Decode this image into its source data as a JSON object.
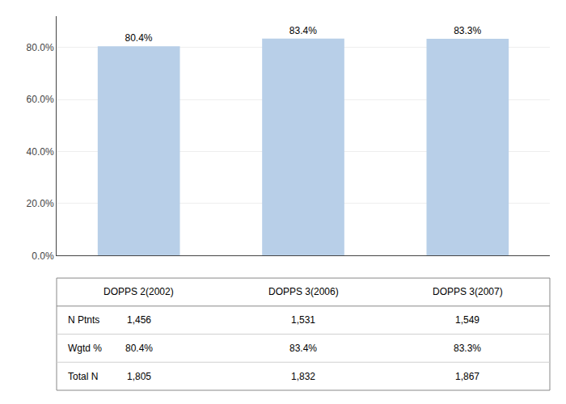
{
  "chart_data": {
    "type": "bar",
    "categories": [
      "DOPPS 2(2002)",
      "DOPPS 3(2006)",
      "DOPPS 3(2007)"
    ],
    "values": [
      80.4,
      83.4,
      83.3
    ],
    "value_labels": [
      "80.4%",
      "83.4%",
      "83.3%"
    ],
    "data_labels": true,
    "color": "#b8cfe8",
    "ylim": [
      0,
      92
    ],
    "yticks": [
      {
        "value": 0,
        "label": "0.0%"
      },
      {
        "value": 20,
        "label": "20.0%"
      },
      {
        "value": 40,
        "label": "40.0%"
      },
      {
        "value": 60,
        "label": "60.0%"
      },
      {
        "value": 80,
        "label": "80.0%"
      }
    ],
    "grid": true,
    "tick_labels": "y",
    "table": {
      "row_labels": [
        "N Ptnts",
        "Wgtd %",
        "Total N"
      ],
      "cells": [
        [
          "1,456",
          "1,531",
          "1,549"
        ],
        [
          "80.4%",
          "83.4%",
          "83.3%"
        ],
        [
          "1,805",
          "1,832",
          "1,867"
        ]
      ]
    }
  }
}
